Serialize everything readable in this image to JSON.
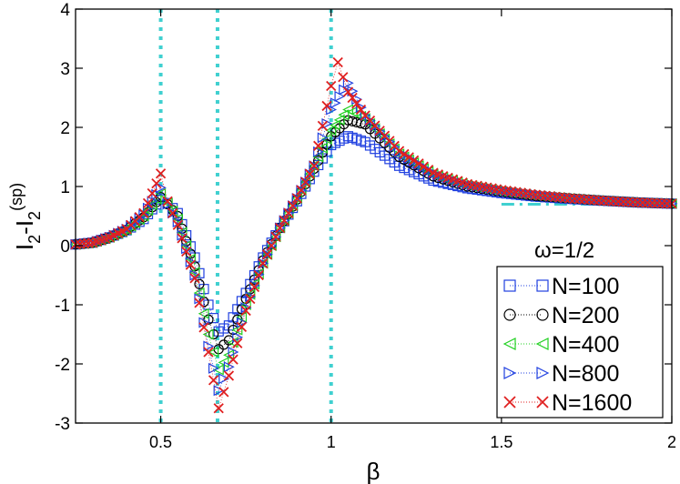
{
  "chart_data": {
    "type": "scatter",
    "xlabel": "β",
    "ylabel_main": "I",
    "ylabel_sub1": "2",
    "ylabel_dash": "-I",
    "ylabel_sub2": "2",
    "ylabel_sup": "(sp)",
    "xlim": [
      0.25,
      2.0
    ],
    "ylim": [
      -3,
      4
    ],
    "xticks": [
      0.5,
      1.0,
      1.5,
      2.0
    ],
    "xtick_labels": [
      "0.5",
      "1",
      "1.5",
      "2"
    ],
    "yticks": [
      -3,
      -2,
      -1,
      0,
      1,
      2,
      3,
      4
    ],
    "ytick_labels": [
      "-3",
      "-2",
      "-1",
      "0",
      "1",
      "2",
      "3",
      "4"
    ],
    "vlines": [
      0.5,
      0.6667,
      1.0
    ],
    "vline_color": "#40D0D0",
    "asymptote": {
      "x": [
        1.5,
        2.0
      ],
      "y": [
        0.7,
        0.7
      ],
      "color": "#40D0D0"
    },
    "legend_title": "ω=1/2",
    "legend_position": "bottom-right",
    "series": [
      {
        "name": "N=100",
        "marker": "square",
        "color": "#2040E0",
        "x": [
          0.25,
          0.3,
          0.35,
          0.4,
          0.45,
          0.5,
          0.52,
          0.55,
          0.6,
          0.64,
          0.67,
          0.7,
          0.75,
          0.8,
          0.85,
          0.9,
          0.95,
          1.0,
          1.05,
          1.1,
          1.2,
          1.3,
          1.4,
          1.5,
          1.6,
          1.7,
          1.8,
          1.9,
          2.0
        ],
        "y": [
          0.02,
          0.05,
          0.14,
          0.26,
          0.45,
          0.78,
          0.72,
          0.55,
          -0.2,
          -1.0,
          -1.45,
          -1.35,
          -0.8,
          -0.2,
          0.3,
          0.75,
          1.25,
          1.7,
          1.85,
          1.75,
          1.35,
          1.1,
          0.97,
          0.89,
          0.83,
          0.79,
          0.76,
          0.73,
          0.71
        ]
      },
      {
        "name": "N=200",
        "marker": "circle",
        "color": "#000000",
        "x": [
          0.25,
          0.3,
          0.35,
          0.4,
          0.45,
          0.5,
          0.52,
          0.55,
          0.6,
          0.64,
          0.67,
          0.7,
          0.75,
          0.8,
          0.85,
          0.9,
          0.95,
          1.0,
          1.05,
          1.1,
          1.2,
          1.3,
          1.4,
          1.5,
          1.6,
          1.7,
          1.8,
          1.9,
          2.0
        ],
        "y": [
          0.02,
          0.05,
          0.14,
          0.27,
          0.48,
          0.82,
          0.7,
          0.5,
          -0.35,
          -1.25,
          -1.75,
          -1.6,
          -0.9,
          -0.25,
          0.3,
          0.78,
          1.3,
          1.85,
          2.12,
          2.05,
          1.5,
          1.17,
          1.0,
          0.91,
          0.84,
          0.8,
          0.76,
          0.73,
          0.71
        ]
      },
      {
        "name": "N=400",
        "marker": "triangle-left",
        "color": "#20D020",
        "x": [
          0.25,
          0.3,
          0.35,
          0.4,
          0.45,
          0.5,
          0.52,
          0.55,
          0.6,
          0.64,
          0.67,
          0.7,
          0.75,
          0.8,
          0.85,
          0.9,
          0.95,
          1.0,
          1.05,
          1.1,
          1.2,
          1.3,
          1.4,
          1.5,
          1.6,
          1.7,
          1.8,
          1.9,
          2.0
        ],
        "y": [
          0.02,
          0.05,
          0.14,
          0.27,
          0.5,
          0.88,
          0.72,
          0.45,
          -0.45,
          -1.5,
          -2.1,
          -1.85,
          -1.0,
          -0.3,
          0.3,
          0.8,
          1.35,
          1.95,
          2.3,
          2.15,
          1.55,
          1.2,
          1.02,
          0.92,
          0.85,
          0.8,
          0.76,
          0.73,
          0.71
        ]
      },
      {
        "name": "N=800",
        "marker": "triangle-right",
        "color": "#2040E0",
        "x": [
          0.25,
          0.3,
          0.35,
          0.4,
          0.45,
          0.5,
          0.52,
          0.55,
          0.6,
          0.64,
          0.67,
          0.7,
          0.75,
          0.8,
          0.85,
          0.9,
          0.95,
          1.0,
          1.05,
          1.1,
          1.2,
          1.3,
          1.4,
          1.5,
          1.6,
          1.7,
          1.8,
          1.9,
          2.0
        ],
        "y": [
          0.02,
          0.05,
          0.14,
          0.28,
          0.52,
          0.98,
          0.7,
          0.4,
          -0.5,
          -1.7,
          -2.45,
          -2.05,
          -1.05,
          -0.3,
          0.3,
          0.8,
          1.35,
          2.3,
          2.75,
          2.2,
          1.58,
          1.22,
          1.03,
          0.93,
          0.86,
          0.8,
          0.76,
          0.73,
          0.71
        ]
      },
      {
        "name": "N=1600",
        "marker": "x",
        "color": "#E02020",
        "x": [
          0.25,
          0.3,
          0.35,
          0.4,
          0.45,
          0.5,
          0.52,
          0.55,
          0.6,
          0.64,
          0.67,
          0.7,
          0.75,
          0.8,
          0.85,
          0.9,
          0.95,
          1.0,
          1.02,
          1.05,
          1.1,
          1.2,
          1.3,
          1.4,
          1.5,
          1.6,
          1.7,
          1.8,
          1.9,
          2.0
        ],
        "y": [
          0.02,
          0.05,
          0.14,
          0.28,
          0.55,
          1.22,
          0.75,
          0.35,
          -0.55,
          -1.8,
          -2.75,
          -2.2,
          -1.1,
          -0.3,
          0.3,
          0.8,
          1.35,
          2.7,
          3.1,
          2.6,
          2.2,
          1.6,
          1.23,
          1.04,
          0.94,
          0.86,
          0.8,
          0.76,
          0.73,
          0.71
        ]
      }
    ]
  }
}
